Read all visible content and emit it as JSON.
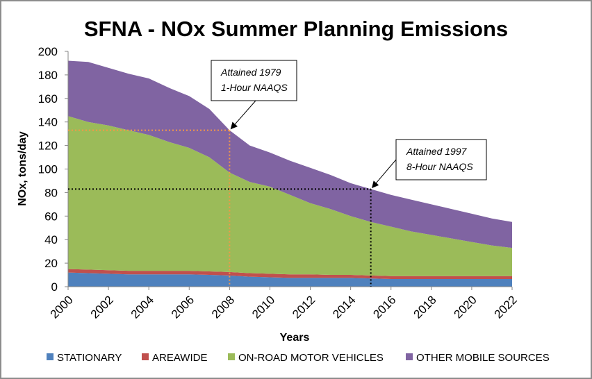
{
  "chart_data": {
    "type": "area",
    "stacked": true,
    "title": "SFNA - NOx Summer Planning Emissions",
    "xlabel": "Years",
    "ylabel": "NOx, tons/day",
    "ylim": [
      0,
      200
    ],
    "yticks": [
      0,
      20,
      40,
      60,
      80,
      100,
      120,
      140,
      160,
      180,
      200
    ],
    "xlim": [
      2000,
      2022
    ],
    "xtick_labels": [
      "2000",
      "2002",
      "2004",
      "2006",
      "2008",
      "2010",
      "2012",
      "2014",
      "2016",
      "2018",
      "2020",
      "2022"
    ],
    "x": [
      2000,
      2001,
      2002,
      2003,
      2004,
      2005,
      2006,
      2007,
      2008,
      2009,
      2010,
      2011,
      2012,
      2013,
      2014,
      2015,
      2016,
      2017,
      2018,
      2019,
      2020,
      2021,
      2022
    ],
    "series": [
      {
        "name": "STATIONARY",
        "color": "#4f81bd",
        "values": [
          12,
          11.5,
          11,
          10.5,
          10.5,
          10.5,
          10.5,
          10,
          9.5,
          8.5,
          8,
          7.5,
          7.5,
          7.5,
          7.5,
          7,
          6.5,
          6.5,
          6.5,
          6.5,
          6.5,
          6.5,
          6.5
        ]
      },
      {
        "name": "AREAWIDE",
        "color": "#c0504d",
        "values": [
          3,
          3,
          3,
          3,
          3,
          3,
          3,
          3,
          3,
          3,
          3,
          3,
          3,
          2.5,
          2.5,
          2.5,
          2.5,
          2.5,
          2.5,
          2.5,
          2.5,
          2.5,
          2.5
        ]
      },
      {
        "name": "ON-ROAD MOTOR VEHICLES",
        "color": "#9bbb59",
        "values": [
          130,
          125.5,
          123,
          119.5,
          115.5,
          109.5,
          104.5,
          97,
          84.5,
          77.5,
          74,
          67.5,
          60.5,
          56,
          50,
          45.5,
          42,
          38,
          35,
          32,
          29,
          26,
          24
        ]
      },
      {
        "name": "OTHER MOBILE SOURCES",
        "color": "#8064a2",
        "values": [
          47,
          51,
          49,
          48,
          48,
          46,
          44,
          41,
          36,
          31,
          29,
          29,
          30,
          29,
          28,
          28,
          27,
          27,
          26,
          25,
          24,
          23,
          22
        ]
      }
    ],
    "reference_lines": [
      {
        "label": "Attained 1979 1-Hour NAAQS",
        "year": 2008,
        "value": 133,
        "color": "#f79646"
      },
      {
        "label": "Attained 1997 8-Hour NAAQS",
        "year": 2015,
        "value": 83,
        "color": "#000000"
      }
    ],
    "annotations": [
      {
        "line1": "Attained 1979",
        "line2": "1-Hour NAAQS"
      },
      {
        "line1": "Attained 1997",
        "line2": "8-Hour NAAQS"
      }
    ],
    "legend_position": "bottom",
    "grid": false
  }
}
